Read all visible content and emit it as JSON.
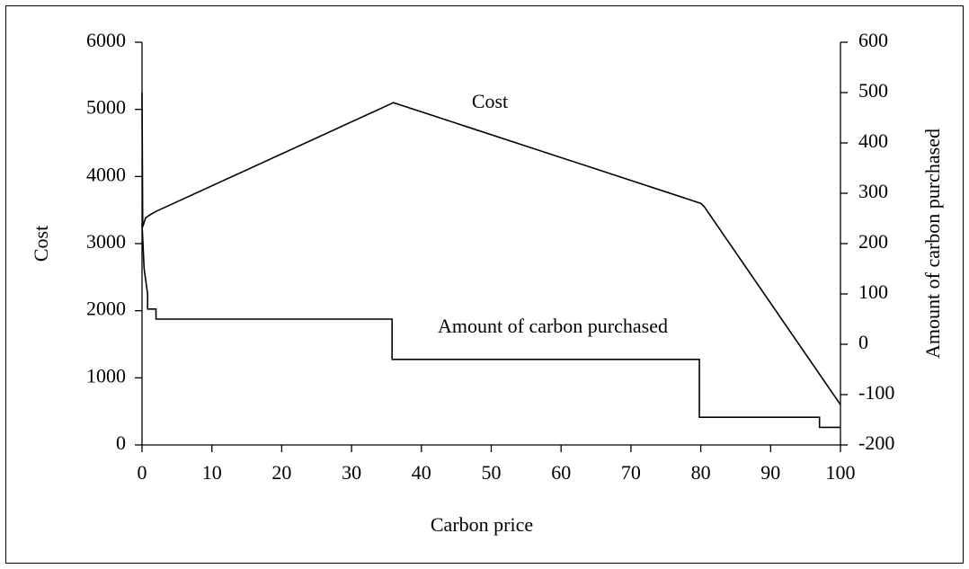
{
  "chart_data": {
    "type": "line",
    "xlabel": "Carbon price",
    "ylabel": "Cost",
    "y2label": "Amount of carbon purchased",
    "xlim": [
      0,
      100
    ],
    "xticks": [
      0,
      10,
      20,
      30,
      40,
      50,
      60,
      70,
      80,
      90,
      100
    ],
    "ylim": [
      0,
      6000
    ],
    "yticks": [
      0,
      1000,
      2000,
      3000,
      4000,
      5000,
      6000
    ],
    "y2lim": [
      -200,
      600
    ],
    "y2ticks": [
      -200,
      -100,
      0,
      100,
      200,
      300,
      400,
      500,
      600
    ],
    "grid": false,
    "series": [
      {
        "name": "Cost",
        "color": "#000000",
        "axis": "y",
        "x": [
          0,
          0.1,
          0.5,
          1,
          2,
          36,
          80,
          80.5,
          100
        ],
        "values": [
          5250,
          3250,
          3380,
          3420,
          3480,
          5100,
          3600,
          3550,
          600
        ]
      },
      {
        "name": "Amount of carbon purchased",
        "color": "#000000",
        "axis": "y2",
        "x": [
          0,
          0.3,
          0.7,
          0.8,
          0.8,
          2,
          2,
          35.8,
          35.8,
          79.8,
          79.8,
          97,
          97,
          100
        ],
        "values": [
          240,
          150,
          110,
          100,
          70,
          70,
          50,
          50,
          -30,
          -30,
          -145,
          -145,
          -165,
          -165
        ]
      }
    ]
  }
}
